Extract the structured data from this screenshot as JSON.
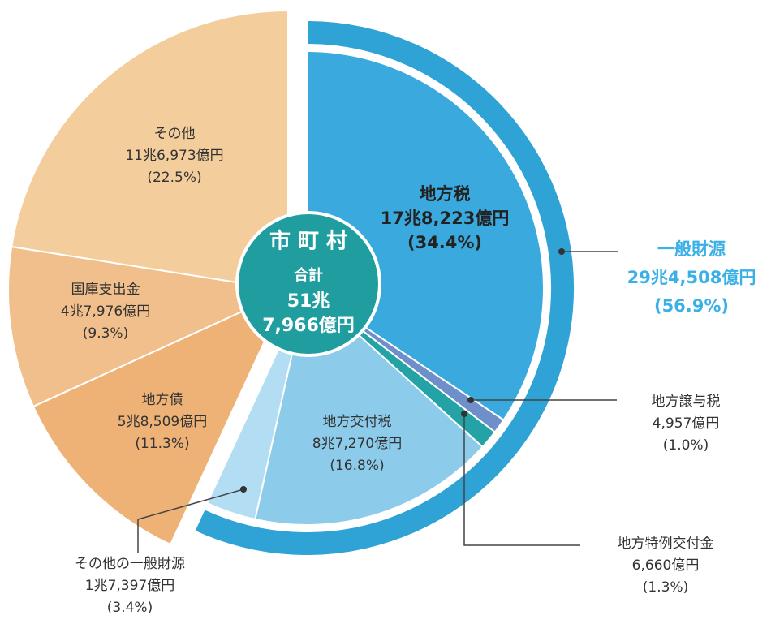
{
  "chart_data": {
    "type": "pie",
    "title": "市 町 村",
    "center_lines": [
      "合計",
      "51兆",
      "7,966億円"
    ],
    "categories": [
      "地方税",
      "地方譲与税",
      "地方特例交付金",
      "地方交付税",
      "その他の一般財源",
      "地方債",
      "国庫支出金",
      "その他"
    ],
    "amounts": [
      "17兆8,223億円",
      "4,957億円",
      "6,660億円",
      "8兆7,270億円",
      "1兆7,397億円",
      "5兆8,509億円",
      "4兆7,976億円",
      "11兆6,973億円"
    ],
    "values": [
      34.4,
      1.0,
      1.3,
      16.8,
      3.4,
      11.3,
      9.3,
      22.5
    ],
    "value_labels": [
      "(34.4%)",
      "(1.0%)",
      "(1.3%)",
      "(16.8%)",
      "(3.4%)",
      "(11.3%)",
      "(9.3%)",
      "(22.5%)"
    ],
    "colors": [
      "#3aaade",
      "#6f8fcb",
      "#23a3a6",
      "#8ccbea",
      "#b2ddf2",
      "#eeb276",
      "#f1bf8c",
      "#f4cd9c"
    ],
    "group": {
      "name": "一般財源",
      "amount": "29兆4,508億円",
      "value": 56.9,
      "value_label": "(56.9%)",
      "color": "#2fa2d6"
    }
  }
}
